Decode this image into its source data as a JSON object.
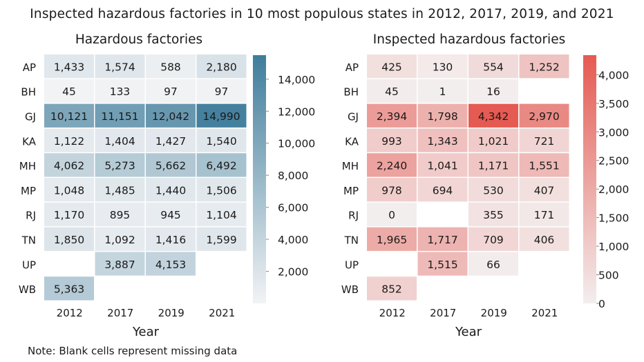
{
  "title": "Inspected hazardous factories in 10 most populous states in 2012, 2017, 2019, and 2021",
  "note": "Note: Blank cells represent missing data",
  "chart_data": [
    {
      "type": "heatmap",
      "title": "Hazardous factories",
      "xlabel": "Year",
      "ylabel": "",
      "x": [
        "2012",
        "2017",
        "2019",
        "2021"
      ],
      "y": [
        "AP",
        "BH",
        "GJ",
        "KA",
        "MH",
        "MP",
        "RJ",
        "TN",
        "UP",
        "WB"
      ],
      "values": [
        [
          1433,
          1574,
          588,
          2180
        ],
        [
          45,
          133,
          97,
          97
        ],
        [
          10121,
          11151,
          12042,
          14990
        ],
        [
          1122,
          1404,
          1427,
          1540
        ],
        [
          4062,
          5273,
          5662,
          6492
        ],
        [
          1048,
          1485,
          1440,
          1506
        ],
        [
          1170,
          895,
          945,
          1104
        ],
        [
          1850,
          1092,
          1416,
          1599
        ],
        [
          null,
          3887,
          4153,
          null
        ],
        [
          5363,
          null,
          null,
          null
        ]
      ],
      "colorbar": {
        "ticks": [
          2000,
          4000,
          6000,
          8000,
          10000,
          12000,
          14000
        ],
        "range": [
          0,
          15500
        ],
        "low_color": "#f2f3f5",
        "high_color": "#3f7d9b"
      }
    },
    {
      "type": "heatmap",
      "title": "Inspected hazardous factories",
      "xlabel": "Year",
      "ylabel": "",
      "x": [
        "2012",
        "2017",
        "2019",
        "2021"
      ],
      "y": [
        "AP",
        "BH",
        "GJ",
        "KA",
        "MH",
        "MP",
        "RJ",
        "TN",
        "UP",
        "WB"
      ],
      "values": [
        [
          425,
          130,
          554,
          1252
        ],
        [
          45,
          1,
          16,
          null
        ],
        [
          2394,
          1798,
          4342,
          2970
        ],
        [
          993,
          1343,
          1021,
          721
        ],
        [
          2240,
          1041,
          1171,
          1551
        ],
        [
          978,
          694,
          530,
          407
        ],
        [
          0,
          null,
          355,
          171
        ],
        [
          1965,
          1717,
          709,
          406
        ],
        [
          null,
          1515,
          66,
          null
        ],
        [
          852,
          null,
          null,
          null
        ]
      ],
      "colorbar": {
        "ticks": [
          0,
          500,
          1000,
          1500,
          2000,
          2500,
          3000,
          3500,
          4000
        ],
        "range": [
          0,
          4342
        ],
        "low_color": "#f3eeee",
        "high_color": "#e55a52"
      }
    }
  ]
}
